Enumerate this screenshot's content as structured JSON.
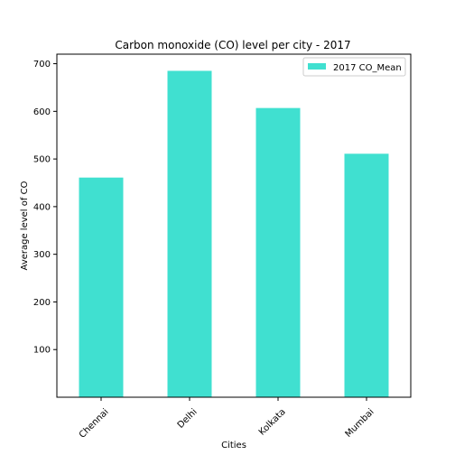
{
  "chart_data": {
    "type": "bar",
    "title": "Carbon monoxide (CO) level per city - 2017",
    "xlabel": "Cities",
    "ylabel": "Average level of CO",
    "categories": [
      "Chennai",
      "Delhi",
      "Kolkata",
      "Mumbai"
    ],
    "series": [
      {
        "name": "2017 CO_Mean",
        "values": [
          461,
          685,
          607,
          511
        ]
      }
    ],
    "ylim": [
      0,
      720
    ],
    "yticks": [
      100,
      200,
      300,
      400,
      500,
      600,
      700
    ],
    "grid": false,
    "legend_position": "top-right",
    "bar_color": "#40e0d0"
  }
}
